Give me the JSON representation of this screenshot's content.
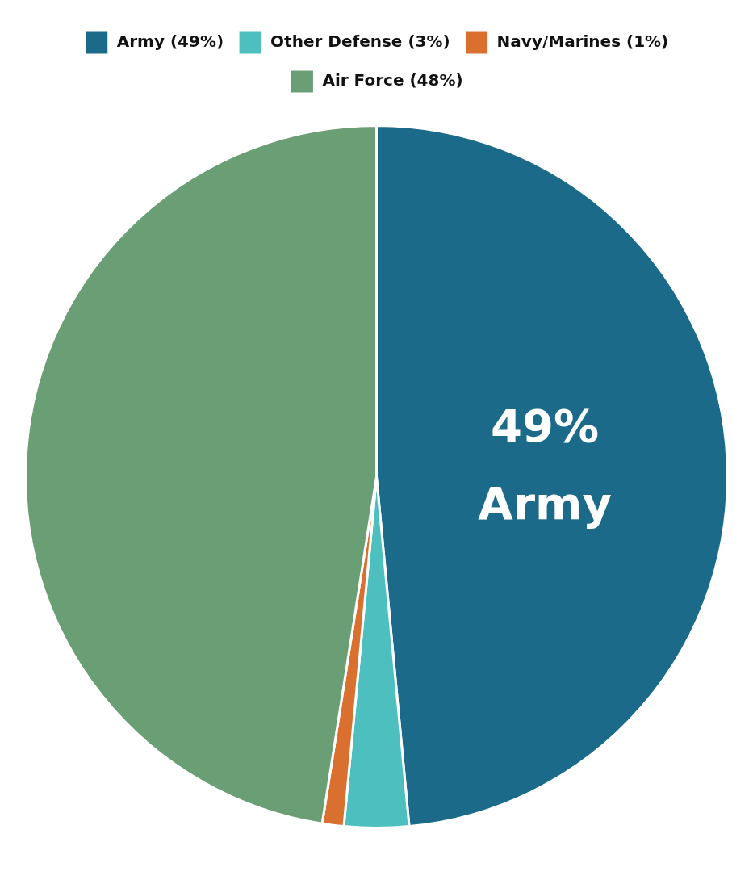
{
  "chart_data": {
    "type": "pie",
    "categories": [
      "Army (49%)",
      "Other Defense (3%)",
      "Navy/Marines (1%)",
      "Air Force (48%)"
    ],
    "values": [
      49,
      3,
      1,
      48
    ],
    "colors": [
      "#1b6a8a",
      "#4dbfbf",
      "#d97030",
      "#6a9e74"
    ],
    "legend": "top",
    "annotations": [
      {
        "text": "49%",
        "category": "Army (49%)"
      },
      {
        "text": "Army",
        "category": "Army (49%)"
      }
    ]
  }
}
